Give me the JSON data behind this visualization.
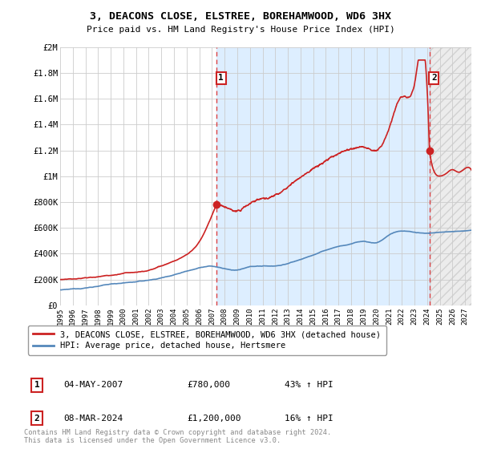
{
  "title": "3, DEACONS CLOSE, ELSTREE, BOREHAMWOOD, WD6 3HX",
  "subtitle": "Price paid vs. HM Land Registry's House Price Index (HPI)",
  "ylim": [
    0,
    2000000
  ],
  "yticks": [
    0,
    200000,
    400000,
    600000,
    800000,
    1000000,
    1200000,
    1400000,
    1600000,
    1800000,
    2000000
  ],
  "ytick_labels": [
    "£0",
    "£200K",
    "£400K",
    "£600K",
    "£800K",
    "£1M",
    "£1.2M",
    "£1.4M",
    "£1.6M",
    "£1.8M",
    "£2M"
  ],
  "xlim_start": 1995.0,
  "xlim_end": 2027.5,
  "xticks": [
    1995,
    1996,
    1997,
    1998,
    1999,
    2000,
    2001,
    2002,
    2003,
    2004,
    2005,
    2006,
    2007,
    2008,
    2009,
    2010,
    2011,
    2012,
    2013,
    2014,
    2015,
    2016,
    2017,
    2018,
    2019,
    2020,
    2021,
    2022,
    2023,
    2024,
    2025,
    2026,
    2027
  ],
  "grid_color": "#cccccc",
  "hpi_line_color": "#5588bb",
  "price_line_color": "#cc2222",
  "sale1_x": 2007.35,
  "sale1_y": 780000,
  "sale2_x": 2024.18,
  "sale2_y": 1200000,
  "dashed_line_color": "#dd4444",
  "bg_span_color": "#ddeeff",
  "hatch_color": "#cccccc",
  "legend_entries": [
    "3, DEACONS CLOSE, ELSTREE, BOREHAMWOOD, WD6 3HX (detached house)",
    "HPI: Average price, detached house, Hertsmere"
  ],
  "annotation1_label": "1",
  "annotation1_date": "04-MAY-2007",
  "annotation1_price": "£780,000",
  "annotation1_pct": "43% ↑ HPI",
  "annotation2_label": "2",
  "annotation2_date": "08-MAR-2024",
  "annotation2_price": "£1,200,000",
  "annotation2_pct": "16% ↑ HPI",
  "footer": "Contains HM Land Registry data © Crown copyright and database right 2024.\nThis data is licensed under the Open Government Licence v3.0.",
  "hatch_start": 2024.18,
  "hatch_end": 2027.5
}
